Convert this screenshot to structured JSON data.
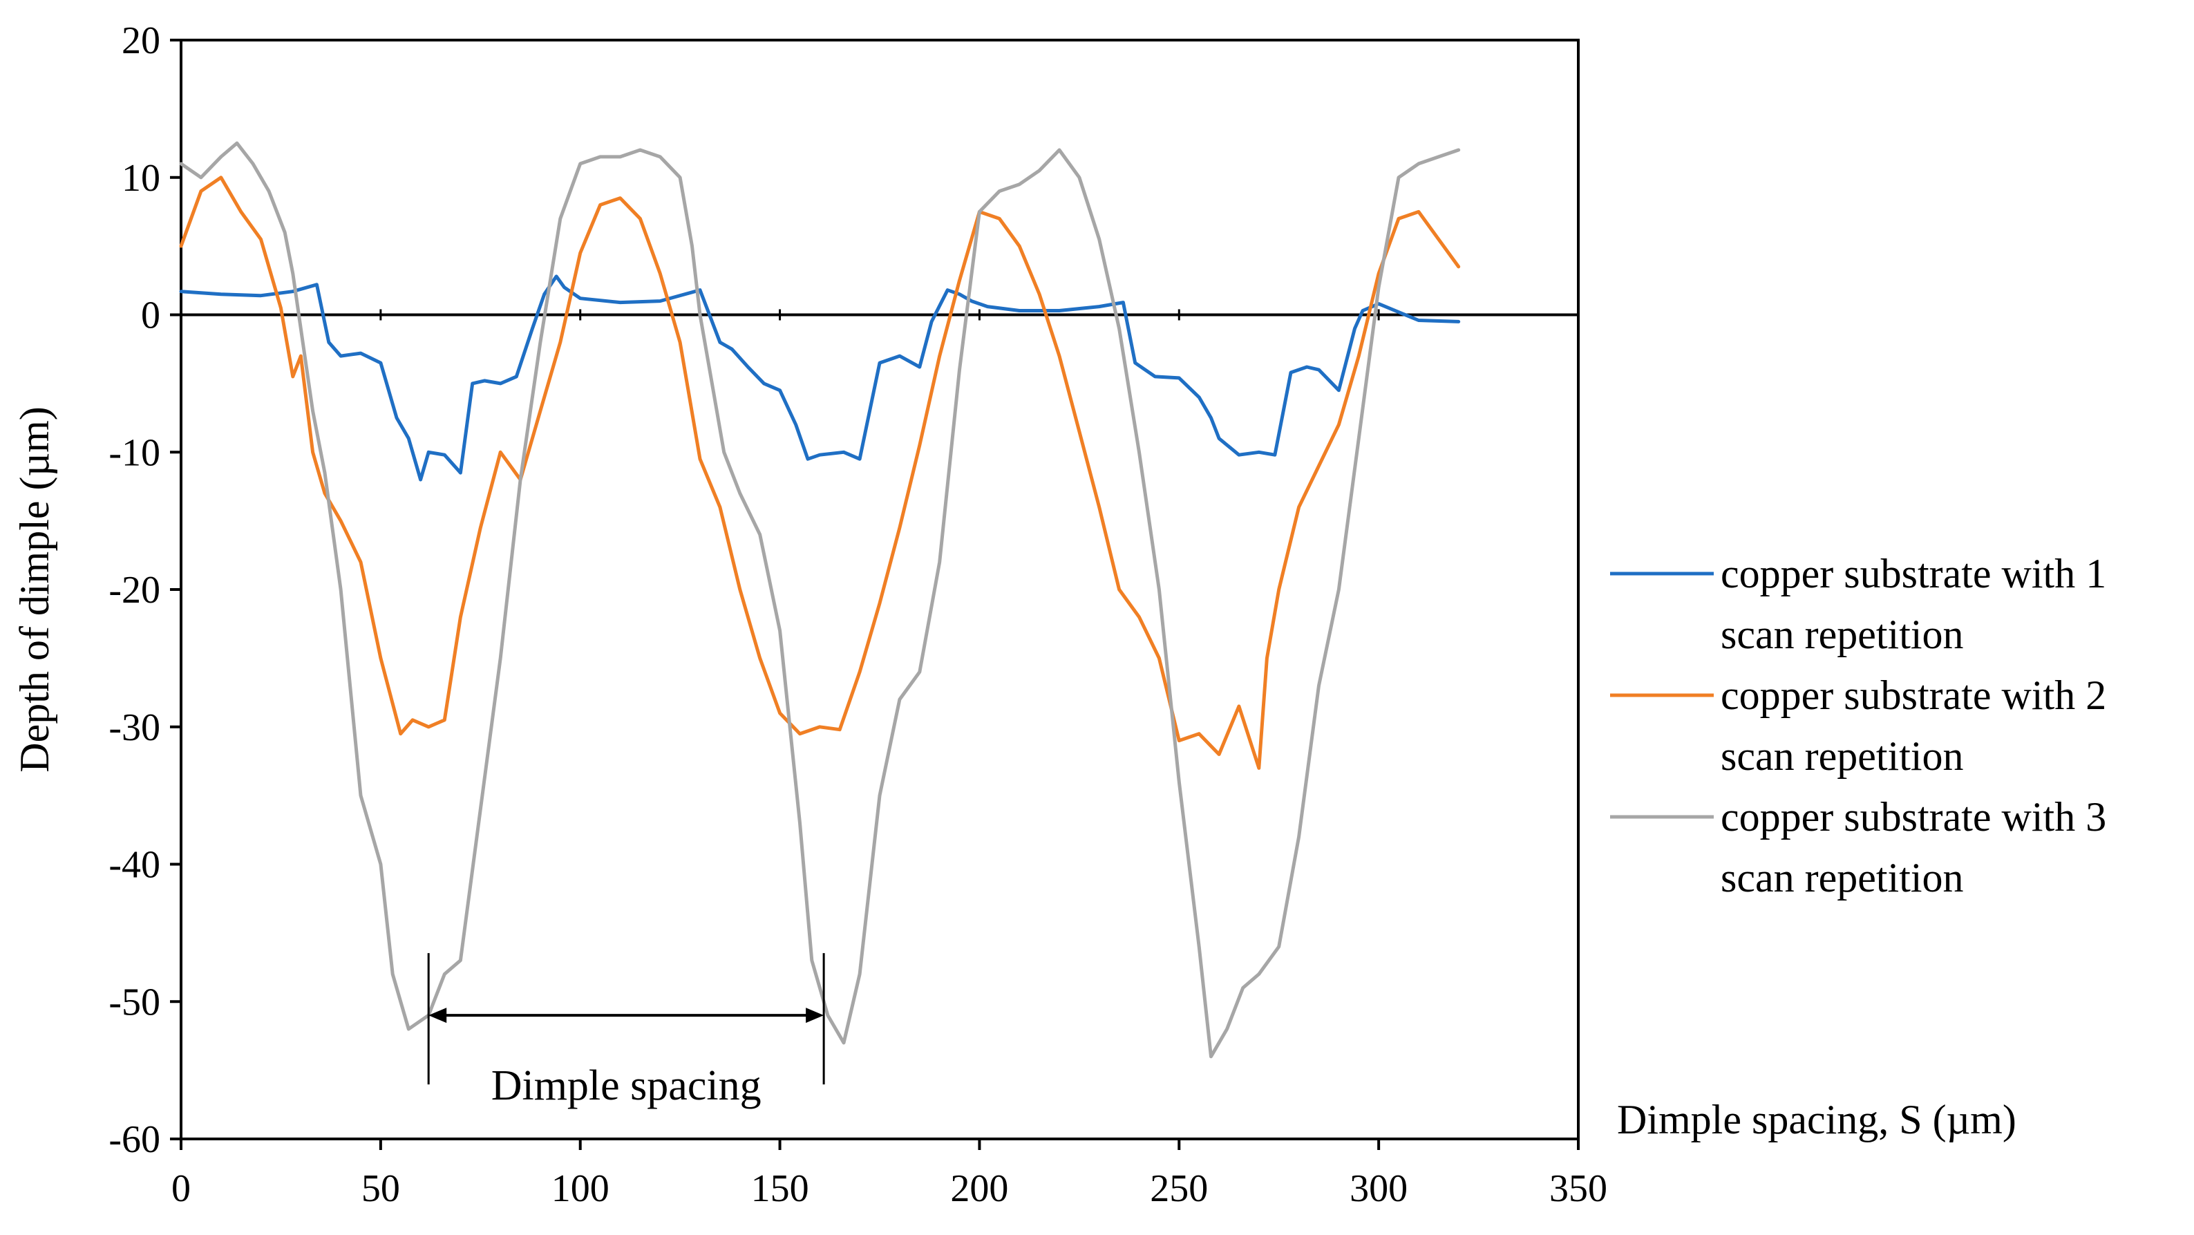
{
  "chart_data": {
    "type": "line",
    "title": "",
    "xlabel": "Dimple spacing, S (µm)",
    "ylabel": "Depth of dimple (µm)",
    "xlim": [
      0,
      350
    ],
    "ylim": [
      -60,
      20
    ],
    "x_ticks": [
      "0",
      "50",
      "100",
      "150",
      "200",
      "250",
      "300",
      "350"
    ],
    "y_ticks": [
      "20",
      "10",
      "0",
      "-10",
      "-20",
      "-30",
      "-40",
      "-50",
      "-60"
    ],
    "grid": false,
    "legend_position": "right",
    "annotation": {
      "text": "Dimple spacing",
      "x_start": 62,
      "x_end": 161,
      "y": -51
    },
    "series": [
      {
        "name": "copper substrate with 1 scan repetition",
        "name_lines": [
          "copper substrate with 1",
          "scan repetition"
        ],
        "color": "#1F6FC4",
        "x": [
          0,
          10,
          20,
          28,
          34,
          37,
          40,
          45,
          50,
          54,
          57,
          60,
          62,
          66,
          70,
          73,
          76,
          80,
          84,
          88,
          91,
          94,
          96,
          100,
          110,
          120,
          130,
          135,
          138,
          142,
          146,
          150,
          154,
          157,
          160,
          166,
          170,
          175,
          180,
          185,
          188,
          192,
          195,
          198,
          202,
          210,
          220,
          230,
          236,
          239,
          244,
          250,
          255,
          258,
          260,
          265,
          270,
          274,
          278,
          282,
          285,
          290,
          294,
          296,
          300,
          310,
          320
        ],
        "y": [
          1.7,
          1.5,
          1.4,
          1.7,
          2.2,
          -2.0,
          -3.0,
          -2.8,
          -3.5,
          -7.5,
          -9.0,
          -12.0,
          -10.0,
          -10.2,
          -11.5,
          -5.0,
          -4.8,
          -5.0,
          -4.5,
          -1.0,
          1.5,
          2.8,
          2.0,
          1.2,
          0.9,
          1.0,
          1.8,
          -2.0,
          -2.5,
          -3.8,
          -5.0,
          -5.5,
          -8.0,
          -10.5,
          -10.2,
          -10.0,
          -10.5,
          -3.5,
          -3.0,
          -3.8,
          -0.5,
          1.8,
          1.5,
          1.0,
          0.6,
          0.3,
          0.3,
          0.6,
          0.9,
          -3.5,
          -4.5,
          -4.6,
          -6.0,
          -7.5,
          -9.0,
          -10.2,
          -10.0,
          -10.2,
          -4.2,
          -3.8,
          -4.0,
          -5.5,
          -1.0,
          0.3,
          0.8,
          -0.4,
          -0.5
        ]
      },
      {
        "name": "copper substrate with 2 scan repetition",
        "name_lines": [
          "copper substrate with 2",
          "scan repetition"
        ],
        "color": "#F07F24",
        "x": [
          0,
          5,
          10,
          15,
          20,
          25,
          28,
          30,
          33,
          36,
          40,
          45,
          50,
          55,
          58,
          62,
          66,
          70,
          75,
          80,
          85,
          90,
          95,
          100,
          105,
          110,
          115,
          120,
          125,
          130,
          135,
          140,
          145,
          150,
          155,
          160,
          165,
          170,
          175,
          180,
          185,
          190,
          195,
          200,
          205,
          210,
          215,
          220,
          225,
          230,
          235,
          240,
          245,
          250,
          255,
          260,
          265,
          270,
          272,
          275,
          280,
          285,
          290,
          295,
          300,
          305,
          310,
          315,
          320
        ],
        "y": [
          5.0,
          9.0,
          10.0,
          7.5,
          5.5,
          0.5,
          -4.5,
          -3.0,
          -10.0,
          -13.0,
          -15.0,
          -18.0,
          -25.0,
          -30.5,
          -29.5,
          -30.0,
          -29.5,
          -22.0,
          -15.5,
          -10.0,
          -12.0,
          -7.0,
          -2.0,
          4.5,
          8.0,
          8.5,
          7.0,
          3.0,
          -2.0,
          -10.5,
          -14.0,
          -20.0,
          -25.0,
          -29.0,
          -30.5,
          -30.0,
          -30.2,
          -26.0,
          -21.0,
          -15.5,
          -9.5,
          -3.0,
          2.5,
          7.5,
          7.0,
          5.0,
          1.5,
          -3.0,
          -8.5,
          -14.0,
          -20.0,
          -22.0,
          -25.0,
          -31.0,
          -30.5,
          -32.0,
          -28.5,
          -33.0,
          -25.0,
          -20.0,
          -14.0,
          -11.0,
          -8.0,
          -3.0,
          3.0,
          7.0,
          7.5,
          5.5,
          3.5
        ]
      },
      {
        "name": "copper substrate with 3 scan repetition",
        "name_lines": [
          "copper substrate with 3",
          "scan repetition"
        ],
        "color": "#A6A6A6",
        "x": [
          0,
          5,
          10,
          14,
          18,
          22,
          26,
          28,
          30,
          33,
          36,
          40,
          45,
          50,
          53,
          57,
          62,
          66,
          70,
          75,
          80,
          85,
          90,
          95,
          100,
          105,
          110,
          115,
          120,
          125,
          128,
          130,
          133,
          136,
          140,
          145,
          150,
          155,
          158,
          162,
          166,
          170,
          175,
          180,
          185,
          190,
          195,
          200,
          205,
          210,
          215,
          220,
          225,
          230,
          235,
          240,
          245,
          250,
          255,
          258,
          262,
          266,
          270,
          275,
          280,
          285,
          290,
          295,
          300,
          305,
          310,
          315,
          320
        ],
        "y": [
          11.0,
          10.0,
          11.5,
          12.5,
          11.0,
          9.0,
          6.0,
          3.0,
          -1.0,
          -7.0,
          -11.5,
          -20.0,
          -35.0,
          -40.0,
          -48.0,
          -52.0,
          -51.0,
          -48.0,
          -47.0,
          -36.0,
          -25.0,
          -12.0,
          -2.0,
          7.0,
          11.0,
          11.5,
          11.5,
          12.0,
          11.5,
          10.0,
          5.0,
          0.0,
          -5.0,
          -10.0,
          -13.0,
          -16.0,
          -23.0,
          -37.0,
          -47.0,
          -51.0,
          -53.0,
          -48.0,
          -35.0,
          -28.0,
          -26.0,
          -18.0,
          -4.0,
          7.5,
          9.0,
          9.5,
          10.5,
          12.0,
          10.0,
          5.5,
          -1.0,
          -10.0,
          -20.0,
          -34.0,
          -46.0,
          -54.0,
          -52.0,
          -49.0,
          -48.0,
          -46.0,
          -38.0,
          -27.0,
          -20.0,
          -9.0,
          2.0,
          10.0,
          11.0,
          11.5,
          12.0
        ]
      }
    ]
  }
}
